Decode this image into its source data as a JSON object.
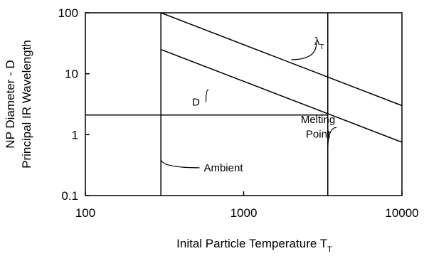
{
  "chart_data": {
    "type": "line",
    "title": "",
    "xlabel": "Inital Particle Temperature T",
    "xlabel_sub": "T",
    "ylabel": [
      "NP Diameter - D",
      "Principal IR Wavelength"
    ],
    "xscale": "log",
    "yscale": "log",
    "xlim": [
      100,
      10000
    ],
    "ylim": [
      0.1,
      100
    ],
    "grid": false,
    "legend": "none",
    "x_ticks": [
      {
        "value": 100,
        "label": "100"
      },
      {
        "value": 1000,
        "label": "1000"
      },
      {
        "value": 10000,
        "label": "10000"
      }
    ],
    "y_ticks": [
      {
        "value": 0.1,
        "label": "0.1"
      },
      {
        "value": 1,
        "label": "1"
      },
      {
        "value": 10,
        "label": "10"
      },
      {
        "value": 100,
        "label": "100"
      }
    ],
    "series": [
      {
        "id": "lambda",
        "x": [
          300,
          10000
        ],
        "y": [
          100,
          3
        ]
      },
      {
        "id": "D",
        "x": [
          300,
          10000
        ],
        "y": [
          25,
          0.75
        ]
      }
    ],
    "reference_lines": [
      {
        "id": "ambient",
        "orientation": "vertical",
        "value": 300
      },
      {
        "id": "melting",
        "orientation": "vertical",
        "value": 3400
      },
      {
        "id": "melt-wavelength",
        "orientation": "horizontal",
        "value": 2.1,
        "x_from": 100,
        "x_to": 3400
      }
    ],
    "annotations": [
      {
        "id": "lambda-label",
        "text": "λ",
        "sub": "T",
        "x": 3000,
        "y": 30,
        "pointer_to": [
          2000,
          17
        ]
      },
      {
        "id": "d-label",
        "text": "D",
        "x": 500,
        "y": 3,
        "pointer_to": [
          600,
          5.5
        ]
      },
      {
        "id": "melting-label-1",
        "text": "Melting",
        "x": 2950,
        "y": 1.55
      },
      {
        "id": "melting-label-2",
        "text": "Point",
        "x": 2950,
        "y": 0.9,
        "pointer_to": [
          3400,
          0.55
        ]
      },
      {
        "id": "ambient-label",
        "text": "Ambient",
        "x": 560,
        "y": 0.25,
        "pointer_to": [
          300,
          0.4
        ]
      }
    ],
    "colors": {
      "line": "#000000",
      "background": "#ffffff"
    }
  }
}
